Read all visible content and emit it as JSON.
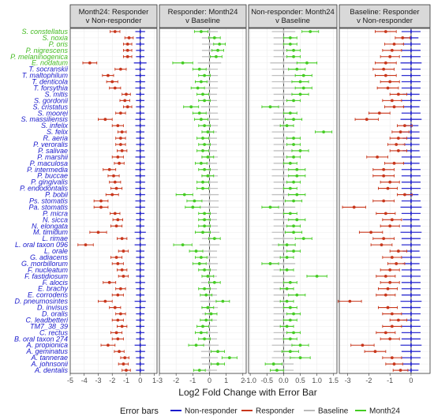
{
  "chart_data": {
    "type": "forest",
    "xlabel": "Log2 Fold Change with Error Bar",
    "legend": {
      "title": "Error bars",
      "position": "bottom",
      "items": [
        {
          "name": "Non-responder",
          "color": "#1a1acc"
        },
        {
          "name": "Responder",
          "color": "#c8361b"
        },
        {
          "name": "Baseline",
          "color": "#bbbbbb"
        },
        {
          "name": "Month24",
          "color": "#44cc22"
        }
      ]
    },
    "species": [
      {
        "name": "S. constellatus",
        "color": "#44bb22"
      },
      {
        "name": "S. noxia",
        "color": "#44bb22"
      },
      {
        "name": "P. oris",
        "color": "#44bb22"
      },
      {
        "name": "P. nigrescens",
        "color": "#44bb22"
      },
      {
        "name": "P. melaninogenica",
        "color": "#44bb22"
      },
      {
        "name": "E. nodatum",
        "color": "#44bb22"
      },
      {
        "name": "T. socranskii",
        "color": "#1a1acc"
      },
      {
        "name": "T. maltophilum",
        "color": "#1a1acc"
      },
      {
        "name": "T. denticola",
        "color": "#1a1acc"
      },
      {
        "name": "T. forsythia",
        "color": "#1a1acc"
      },
      {
        "name": "S. mitis",
        "color": "#1a1acc"
      },
      {
        "name": "S. gordonii",
        "color": "#1a1acc"
      },
      {
        "name": "S. cristatus",
        "color": "#1a1acc"
      },
      {
        "name": "S. moorei",
        "color": "#1a1acc"
      },
      {
        "name": "S. massiliensis",
        "color": "#1a1acc"
      },
      {
        "name": "S. infelix",
        "color": "#1a1acc"
      },
      {
        "name": "S. felix",
        "color": "#1a1acc"
      },
      {
        "name": "R. aeria",
        "color": "#1a1acc"
      },
      {
        "name": "P. veroralis",
        "color": "#1a1acc"
      },
      {
        "name": "P. salivae",
        "color": "#1a1acc"
      },
      {
        "name": "P. marshii",
        "color": "#1a1acc"
      },
      {
        "name": "P. maculosa",
        "color": "#1a1acc"
      },
      {
        "name": "P. intermedia",
        "color": "#1a1acc"
      },
      {
        "name": "P. buccae",
        "color": "#1a1acc"
      },
      {
        "name": "P. gingivalis",
        "color": "#1a1acc"
      },
      {
        "name": "P. endodontalis",
        "color": "#1a1acc"
      },
      {
        "name": "P. bobii",
        "color": "#1a1acc"
      },
      {
        "name": "Ps. stomatis",
        "color": "#1a1acc"
      },
      {
        "name": "Pa. stomatis",
        "color": "#1a1acc"
      },
      {
        "name": "P. micra",
        "color": "#1a1acc"
      },
      {
        "name": "N. sicca",
        "color": "#1a1acc"
      },
      {
        "name": "N. elongata",
        "color": "#1a1acc"
      },
      {
        "name": "M. timidum",
        "color": "#1a1acc"
      },
      {
        "name": "L. rimae",
        "color": "#1a1acc"
      },
      {
        "name": "L. oral taxon 096",
        "color": "#1a1acc"
      },
      {
        "name": "L. orale",
        "color": "#1a1acc"
      },
      {
        "name": "G. adiacens",
        "color": "#1a1acc"
      },
      {
        "name": "G. morbillorum",
        "color": "#1a1acc"
      },
      {
        "name": "F. nucleatum",
        "color": "#1a1acc"
      },
      {
        "name": "F. fastidiosum",
        "color": "#1a1acc"
      },
      {
        "name": "F. alocis",
        "color": "#1a1acc"
      },
      {
        "name": "E. brachy",
        "color": "#1a1acc"
      },
      {
        "name": "E. corrodens",
        "color": "#1a1acc"
      },
      {
        "name": "D. pneumosintes",
        "color": "#1a1acc"
      },
      {
        "name": "D. invisus",
        "color": "#1a1acc"
      },
      {
        "name": "D. oralis",
        "color": "#1a1acc"
      },
      {
        "name": "C. leadbetteri",
        "color": "#1a1acc"
      },
      {
        "name": "TM7_38_39",
        "color": "#1a1acc"
      },
      {
        "name": "C. rectus",
        "color": "#1a1acc"
      },
      {
        "name": "B. oral taxon 274",
        "color": "#1a1acc"
      },
      {
        "name": "A. propionica",
        "color": "#1a1acc"
      },
      {
        "name": "A. geminatus",
        "color": "#1a1acc"
      },
      {
        "name": "A. tannerae",
        "color": "#1a1acc"
      },
      {
        "name": "A. johnsonii",
        "color": "#1a1acc"
      },
      {
        "name": "A. dentalis",
        "color": "#1a1acc"
      }
    ],
    "panels": [
      {
        "title": [
          "Month24: Responder",
          "v Non-responder"
        ],
        "xlim": [
          -5,
          1.2
        ],
        "ticks": [
          -5,
          -4,
          -3,
          -2,
          -1,
          0,
          1
        ],
        "dot": {
          "name": "Responder",
          "color": "#c8361b"
        },
        "ref": {
          "name": "Non-responder",
          "color": "#1a1acc"
        },
        "lfc": [
          -1.8,
          -0.8,
          -0.9,
          -0.9,
          -0.9,
          -3.6,
          -1.4,
          -2.3,
          -2.0,
          -1.8,
          -1.0,
          -1.1,
          -0.9,
          -1.4,
          -2.5,
          -1.6,
          -1.3,
          -1.4,
          -1.4,
          -1.3,
          -1.6,
          -1.5,
          -2.2,
          -1.9,
          -1.8,
          -1.7,
          -2.0,
          -2.8,
          -2.8,
          -1.8,
          -1.6,
          -1.7,
          -3.0,
          -1.3,
          -3.9,
          -1.2,
          -1.7,
          -1.6,
          -1.3,
          -1.2,
          -2.2,
          -1.4,
          -1.6,
          -2.5,
          -1.8,
          -1.4,
          -1.6,
          -1.3,
          -1.7,
          -1.6,
          -2.3,
          -1.5,
          -1.1,
          -1.2,
          -1.0
        ],
        "err": [
          0.35,
          0.3,
          0.3,
          0.3,
          0.3,
          0.5,
          0.4,
          0.4,
          0.4,
          0.4,
          0.3,
          0.35,
          0.3,
          0.35,
          0.5,
          0.4,
          0.3,
          0.35,
          0.35,
          0.35,
          0.4,
          0.35,
          0.45,
          0.4,
          0.4,
          0.4,
          0.45,
          0.5,
          0.5,
          0.35,
          0.35,
          0.4,
          0.6,
          0.35,
          0.55,
          0.35,
          0.4,
          0.4,
          0.35,
          0.35,
          0.45,
          0.35,
          0.4,
          0.5,
          0.4,
          0.35,
          0.4,
          0.35,
          0.4,
          0.4,
          0.5,
          0.35,
          0.3,
          0.35,
          0.3
        ],
        "ref_err": [
          0.35,
          0.3,
          0.3,
          0.3,
          0.3,
          0.45,
          0.35,
          0.35,
          0.35,
          0.35,
          0.3,
          0.3,
          0.3,
          0.3,
          0.35,
          0.35,
          0.3,
          0.3,
          0.3,
          0.3,
          0.35,
          0.3,
          0.35,
          0.35,
          0.35,
          0.35,
          0.35,
          0.35,
          0.35,
          0.3,
          0.3,
          0.3,
          0.4,
          0.3,
          0.4,
          0.3,
          0.3,
          0.3,
          0.3,
          0.3,
          0.35,
          0.3,
          0.3,
          0.4,
          0.35,
          0.3,
          0.3,
          0.3,
          0.3,
          0.3,
          0.4,
          0.35,
          0.3,
          0.3,
          0.3
        ]
      },
      {
        "title": [
          "Responder: Month24",
          "v Baseline"
        ],
        "xlim": [
          -3,
          2.2
        ],
        "ticks": [
          -3,
          -2,
          -1,
          0,
          1,
          2
        ],
        "dot": {
          "name": "Month24",
          "color": "#44cc22"
        },
        "ref": {
          "name": "Baseline",
          "color": "#bbbbbb"
        },
        "lfc": [
          -0.5,
          0.3,
          0.6,
          0.5,
          0.4,
          -1.6,
          -0.6,
          -0.3,
          -0.5,
          -0.7,
          -0.4,
          -0.3,
          -1.1,
          -0.6,
          -0.5,
          -0.3,
          -0.1,
          -0.4,
          -0.3,
          -0.4,
          -0.1,
          -0.5,
          -0.3,
          -0.1,
          -0.4,
          -0.4,
          -1.5,
          -0.9,
          -1.0,
          -0.3,
          -0.3,
          -0.3,
          -0.4,
          0.3,
          -1.6,
          -0.8,
          -0.5,
          -0.6,
          -0.3,
          -0.1,
          0.3,
          -0.3,
          -0.2,
          0.8,
          -0.1,
          0.1,
          -0.2,
          -0.4,
          -0.5,
          -0.3,
          -0.8,
          0.5,
          1.2,
          0.5,
          -0.6
        ],
        "err": [
          0.4,
          0.35,
          0.35,
          0.35,
          0.35,
          0.6,
          0.4,
          0.35,
          0.35,
          0.4,
          0.35,
          0.35,
          0.45,
          0.4,
          0.4,
          0.35,
          0.35,
          0.35,
          0.35,
          0.35,
          0.35,
          0.35,
          0.35,
          0.35,
          0.35,
          0.35,
          0.5,
          0.45,
          0.45,
          0.35,
          0.35,
          0.35,
          0.45,
          0.35,
          0.55,
          0.4,
          0.35,
          0.4,
          0.35,
          0.35,
          0.35,
          0.35,
          0.35,
          0.4,
          0.35,
          0.35,
          0.35,
          0.35,
          0.35,
          0.35,
          0.45,
          0.4,
          0.45,
          0.4,
          0.35
        ],
        "ref_err": [
          0.5,
          0.45,
          0.45,
          0.45,
          0.45,
          0.7,
          0.5,
          0.5,
          0.5,
          0.5,
          0.45,
          0.45,
          0.5,
          0.5,
          0.55,
          0.5,
          0.45,
          0.45,
          0.45,
          0.45,
          0.5,
          0.45,
          0.5,
          0.5,
          0.5,
          0.5,
          0.55,
          0.55,
          0.55,
          0.45,
          0.45,
          0.5,
          0.6,
          0.45,
          0.6,
          0.45,
          0.45,
          0.5,
          0.45,
          0.45,
          0.5,
          0.45,
          0.45,
          0.55,
          0.5,
          0.45,
          0.45,
          0.45,
          0.5,
          0.45,
          0.55,
          0.5,
          0.5,
          0.45,
          0.45
        ]
      },
      {
        "title": [
          "Non-responder: Month24",
          "v Baseline"
        ],
        "xlim": [
          -1.05,
          1.6
        ],
        "ticks": [
          -1.0,
          -0.5,
          0.0,
          0.5,
          1.0,
          1.5
        ],
        "dot": {
          "name": "Month24",
          "color": "#44cc22"
        },
        "ref": {
          "name": "Baseline",
          "color": "#bbbbbb"
        },
        "lfc": [
          0.8,
          0.2,
          0.2,
          0.3,
          0.3,
          0.7,
          0.4,
          0.6,
          0.5,
          0.6,
          0.5,
          0.3,
          -0.4,
          0.2,
          0.3,
          0.1,
          1.2,
          0.3,
          0.3,
          0.5,
          0.3,
          0.2,
          0.4,
          0.4,
          0.3,
          0.2,
          0.4,
          0.3,
          -0.4,
          0.2,
          0.4,
          0.3,
          0.3,
          0.6,
          0.1,
          0.3,
          0.1,
          -0.4,
          0.1,
          1.0,
          0.2,
          0.1,
          0.4,
          0.1,
          0.2,
          0.3,
          0.2,
          0.1,
          0.3,
          0.2,
          0.5,
          0.2,
          0.5,
          -0.3,
          -0.2
        ],
        "err": [
          0.25,
          0.2,
          0.2,
          0.2,
          0.2,
          0.3,
          0.25,
          0.25,
          0.25,
          0.25,
          0.25,
          0.2,
          0.25,
          0.2,
          0.25,
          0.2,
          0.25,
          0.2,
          0.2,
          0.25,
          0.2,
          0.2,
          0.25,
          0.25,
          0.2,
          0.2,
          0.25,
          0.25,
          0.25,
          0.2,
          0.25,
          0.2,
          0.25,
          0.25,
          0.25,
          0.2,
          0.2,
          0.25,
          0.2,
          0.3,
          0.2,
          0.2,
          0.25,
          0.2,
          0.2,
          0.2,
          0.2,
          0.2,
          0.2,
          0.2,
          0.25,
          0.25,
          0.3,
          0.25,
          0.2
        ],
        "ref_err": [
          0.35,
          0.3,
          0.3,
          0.3,
          0.3,
          0.4,
          0.35,
          0.35,
          0.35,
          0.35,
          0.3,
          0.3,
          0.35,
          0.3,
          0.35,
          0.3,
          0.35,
          0.3,
          0.3,
          0.3,
          0.3,
          0.3,
          0.35,
          0.35,
          0.3,
          0.3,
          0.35,
          0.35,
          0.35,
          0.3,
          0.3,
          0.3,
          0.35,
          0.3,
          0.35,
          0.3,
          0.3,
          0.35,
          0.3,
          0.35,
          0.3,
          0.3,
          0.3,
          0.3,
          0.3,
          0.3,
          0.3,
          0.3,
          0.3,
          0.3,
          0.35,
          0.3,
          0.35,
          0.3,
          0.3
        ]
      },
      {
        "title": [
          "Baseline: Responder",
          "v Non-responder"
        ],
        "xlim": [
          -3.4,
          0.9
        ],
        "ticks": [
          -3,
          -2,
          -1,
          0
        ],
        "dot": {
          "name": "Responder",
          "color": "#c8361b"
        },
        "ref": {
          "name": "Non-responder",
          "color": "#1a1acc"
        },
        "lfc": [
          -1.2,
          -0.4,
          -0.8,
          -0.9,
          -1.0,
          -1.2,
          -1.3,
          -1.2,
          -1.0,
          -1.1,
          -0.6,
          -0.9,
          -0.8,
          -1.5,
          -2.1,
          -0.3,
          -0.5,
          -0.6,
          -0.7,
          -0.6,
          -1.6,
          -0.8,
          -1.3,
          -1.3,
          -1.0,
          -1.1,
          -0.3,
          -1.3,
          -2.7,
          -1.2,
          -0.9,
          -1.0,
          -1.9,
          -1.3,
          -1.4,
          -0.6,
          -0.9,
          -0.7,
          -1.0,
          -1.2,
          -1.0,
          -1.1,
          -1.2,
          -2.9,
          -1.1,
          -0.9,
          -0.6,
          -0.9,
          -1.2,
          -1.0,
          -2.3,
          -1.7,
          -0.9,
          -0.8,
          -0.5
        ],
        "err": [
          0.5,
          0.35,
          0.45,
          0.45,
          0.45,
          0.5,
          0.5,
          0.5,
          0.45,
          0.5,
          0.4,
          0.45,
          0.45,
          0.5,
          0.55,
          0.35,
          0.4,
          0.4,
          0.4,
          0.4,
          0.5,
          0.45,
          0.5,
          0.5,
          0.45,
          0.45,
          0.35,
          0.5,
          0.55,
          0.45,
          0.45,
          0.45,
          0.55,
          0.5,
          0.5,
          0.4,
          0.45,
          0.4,
          0.45,
          0.45,
          0.45,
          0.45,
          0.45,
          0.55,
          0.45,
          0.45,
          0.4,
          0.45,
          0.45,
          0.45,
          0.55,
          0.5,
          0.45,
          0.4,
          0.35
        ],
        "ref_err": [
          0.45,
          0.35,
          0.45,
          0.45,
          0.45,
          0.5,
          0.45,
          0.45,
          0.45,
          0.45,
          0.4,
          0.45,
          0.4,
          0.45,
          0.5,
          0.35,
          0.4,
          0.4,
          0.4,
          0.4,
          0.45,
          0.4,
          0.45,
          0.45,
          0.45,
          0.45,
          0.35,
          0.45,
          0.5,
          0.45,
          0.4,
          0.45,
          0.5,
          0.45,
          0.45,
          0.4,
          0.45,
          0.4,
          0.45,
          0.45,
          0.45,
          0.45,
          0.45,
          0.5,
          0.45,
          0.45,
          0.4,
          0.45,
          0.45,
          0.45,
          0.5,
          0.45,
          0.45,
          0.4,
          0.35
        ]
      }
    ]
  }
}
